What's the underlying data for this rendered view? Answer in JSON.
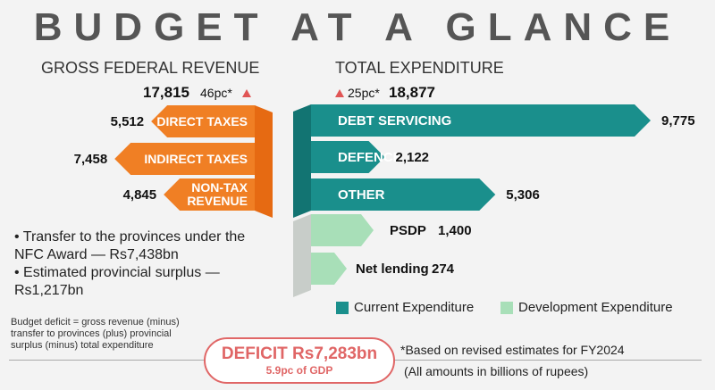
{
  "title": "BUDGET AT A GLANCE",
  "revenue": {
    "heading": "GROSS FEDERAL REVENUE",
    "total": "17,815",
    "change": "46pc*"
  },
  "expenditure": {
    "heading": "TOTAL EXPENDITURE",
    "total": "18,877",
    "change": "25pc*"
  },
  "chart_data": [
    {
      "type": "bar",
      "title": "GROSS FEDERAL REVENUE",
      "categories": [
        "DIRECT TAXES",
        "INDIRECT TAXES",
        "NON-TAX REVENUE"
      ],
      "values": [
        5512,
        7458,
        4845
      ],
      "value_labels": [
        "5,512",
        "7,458",
        "4,845"
      ],
      "colors": [
        "#f07f24",
        "#f07f24",
        "#f07f24"
      ]
    },
    {
      "type": "bar",
      "title": "TOTAL EXPENDITURE",
      "categories": [
        "DEBT SERVICING",
        "DEFENCE",
        "OTHER",
        "PSDP",
        "Net lending"
      ],
      "values": [
        9775,
        2122,
        5306,
        1400,
        274
      ],
      "value_labels": [
        "9,775",
        "2,122",
        "5,306",
        "1,400",
        "274"
      ],
      "groups": [
        "Current Expenditure",
        "Current Expenditure",
        "Current Expenditure",
        "Development Expenditure",
        "Development Expenditure"
      ],
      "colors": [
        "#1a8f8c",
        "#1a8f8c",
        "#1a8f8c",
        "#a8dfb8",
        "#a8dfb8"
      ]
    }
  ],
  "bullets": [
    "• Transfer to the provinces under the NFC Award — Rs7,438bn",
    "• Estimated provincial surplus — Rs1,217bn"
  ],
  "legend": [
    {
      "label": "Current Expenditure",
      "color": "#1a8f8c"
    },
    {
      "label": "Development Expenditure",
      "color": "#a8dfb8"
    }
  ],
  "deficit_note": "Budget deficit = gross revenue (minus) transfer to provinces (plus) provincial surplus (minus) total expenditure",
  "deficit": {
    "main": "DEFICIT  Rs7,283bn",
    "sub": "5.9pc of GDP"
  },
  "footnote1": "*Based on revised estimates for FY2024",
  "footnote2": "(All amounts in billions of rupees)",
  "colors": {
    "revenue": "#f07f24",
    "revenue_dark": "#e66a12",
    "current": "#1a8f8c",
    "development": "#a8dfb8",
    "triangle": "#e05555"
  }
}
